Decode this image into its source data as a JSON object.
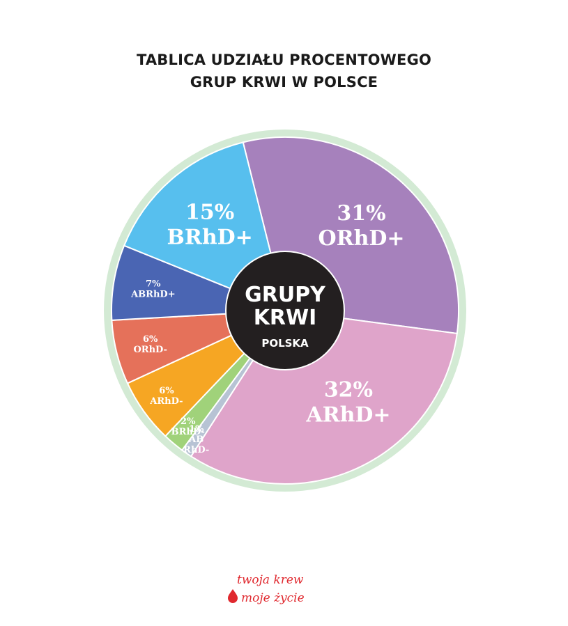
{
  "title": {
    "line1": "TABLICA UDZIAŁU PROCENTOWEGO",
    "line2": "GRUP KRWI W POLSCE"
  },
  "center": {
    "line1": "GRUPY",
    "line2": "KRWI",
    "line3": "POLSKA"
  },
  "chart_data": {
    "type": "pie",
    "title": "TABLICA UDZIAŁU PROCENTOWEGO GRUP KRWI W POLSCE",
    "unit": "%",
    "slices": [
      {
        "pct": "31%",
        "label": "ORhD+",
        "value": 31,
        "color": "#a681bc"
      },
      {
        "pct": "32%",
        "label": "ARhD+",
        "value": 32,
        "color": "#dfa4ca"
      },
      {
        "pct": "1%",
        "label": "AB RhD-",
        "label_lines": [
          "AB",
          "RhD-"
        ],
        "value": 1,
        "color": "#b7c3d4"
      },
      {
        "pct": "2%",
        "label": "BRhD-",
        "value": 2,
        "color": "#a0d27a"
      },
      {
        "pct": "6%",
        "label": "ARhD-",
        "value": 6,
        "color": "#f6a623"
      },
      {
        "pct": "6%",
        "label": "ORhD-",
        "value": 6,
        "color": "#e5715a"
      },
      {
        "pct": "7%",
        "label": "ABRhD+",
        "value": 7,
        "color": "#4a65b3"
      },
      {
        "pct": "15%",
        "label": "BRhD+",
        "value": 15,
        "color": "#57bfee"
      }
    ],
    "border_color": "#d3ead4",
    "center_color": "#231f20"
  },
  "logo": {
    "line1": "twoja krew",
    "line2": "moje życie",
    "color": "#e0282e"
  }
}
